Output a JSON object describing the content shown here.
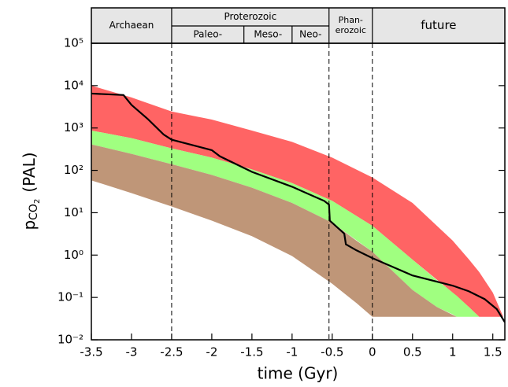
{
  "chart_data": {
    "type": "band-line",
    "xlabel": "time (Gyr)",
    "ylabel": {
      "p": "p",
      "sub": "CO",
      "subsub": "2",
      "unit": "(PAL)"
    },
    "xlim": [
      -3.5,
      1.65
    ],
    "ylim": [
      0.01,
      100000
    ],
    "log_y": true,
    "xticks": [
      -3.5,
      -3,
      -2.5,
      -2,
      -1.5,
      -1,
      -0.5,
      0,
      0.5,
      1,
      1.5
    ],
    "yticks": [
      {
        "value": 0.01,
        "label": "10⁻²"
      },
      {
        "value": 0.1,
        "label": "10⁻¹"
      },
      {
        "value": 1,
        "label": "10⁰"
      },
      {
        "value": 10,
        "label": "10¹"
      },
      {
        "value": 100,
        "label": "10²"
      },
      {
        "value": 1000,
        "label": "10³"
      },
      {
        "value": 10000,
        "label": "10⁴"
      },
      {
        "value": 100000,
        "label": "10⁵"
      }
    ],
    "eons": [
      {
        "label": [
          "Archaean"
        ],
        "start": -3.5,
        "end": -2.5
      },
      {
        "label": [
          "Proterozoic"
        ],
        "start": -2.5,
        "end": -0.54,
        "eras": [
          {
            "label": "Paleo-",
            "start": -2.5,
            "end": -1.6
          },
          {
            "label": "Meso-",
            "start": -1.6,
            "end": -1.0
          },
          {
            "label": "Neo-",
            "start": -1.0,
            "end": -0.54
          }
        ]
      },
      {
        "label": [
          "Phan-",
          "erozoic"
        ],
        "start": -0.54,
        "end": 0
      },
      {
        "label": [
          "future"
        ],
        "start": 0,
        "end": 1.65
      }
    ],
    "bands": [
      {
        "color": "#ff6464",
        "x": [
          -3.5,
          -3,
          -2.5,
          -2,
          -1.5,
          -1,
          -0.5,
          0,
          0.5,
          1,
          1.2,
          1.33,
          1.5,
          1.63
        ],
        "upper": [
          10000,
          5250,
          2450,
          1580,
          870,
          470,
          200,
          68,
          17,
          2.2,
          0.8,
          0.4,
          0.13,
          0.035
        ],
        "lower": [
          870,
          575,
          330,
          200,
          105,
          50,
          19,
          4.9,
          0.78,
          0.13,
          0.06,
          0.035,
          0.035,
          0.035
        ]
      },
      {
        "color": "#a0ff80",
        "x": [
          -3.5,
          -3,
          -2.5,
          -2,
          -1.5,
          -1,
          -0.5,
          0,
          0.5,
          0.8,
          1,
          1.05,
          1.2,
          1.33
        ],
        "upper": [
          870,
          575,
          330,
          200,
          105,
          50,
          19,
          4.9,
          0.78,
          0.26,
          0.13,
          0.11,
          0.06,
          0.035
        ],
        "lower": [
          410,
          245,
          140,
          78,
          39,
          17,
          5.8,
          1.2,
          0.15,
          0.06,
          0.04,
          0.035,
          0.035,
          0.035
        ]
      },
      {
        "color": "#bf9678",
        "x": [
          -3.5,
          -3,
          -2.5,
          -2,
          -1.5,
          -1,
          -0.5,
          -0.2,
          0,
          0.5,
          0.8,
          1.05
        ],
        "upper": [
          410,
          245,
          140,
          78,
          39,
          17,
          5.8,
          2.2,
          1.2,
          0.15,
          0.06,
          0.035
        ],
        "lower": [
          58,
          29,
          14,
          6.5,
          2.8,
          0.95,
          0.21,
          0.074,
          0.035,
          0.035,
          0.035,
          0.035
        ]
      }
    ],
    "series": [
      {
        "color": "#000000",
        "x": [
          -3.5,
          -3.1,
          -3.0,
          -2.8,
          -2.6,
          -2.5,
          -2.0,
          -1.9,
          -1.5,
          -1.0,
          -0.6,
          -0.54,
          -0.53,
          -0.4,
          -0.35,
          -0.33,
          -0.2,
          0,
          0.5,
          1,
          1.2,
          1.4,
          1.55,
          1.65
        ],
        "values": [
          6500,
          6000,
          3500,
          1650,
          700,
          530,
          300,
          215,
          92,
          41,
          19,
          15.5,
          6.5,
          3.9,
          3.2,
          1.8,
          1.3,
          0.85,
          0.33,
          0.19,
          0.14,
          0.091,
          0.053,
          0.026
        ]
      }
    ]
  }
}
